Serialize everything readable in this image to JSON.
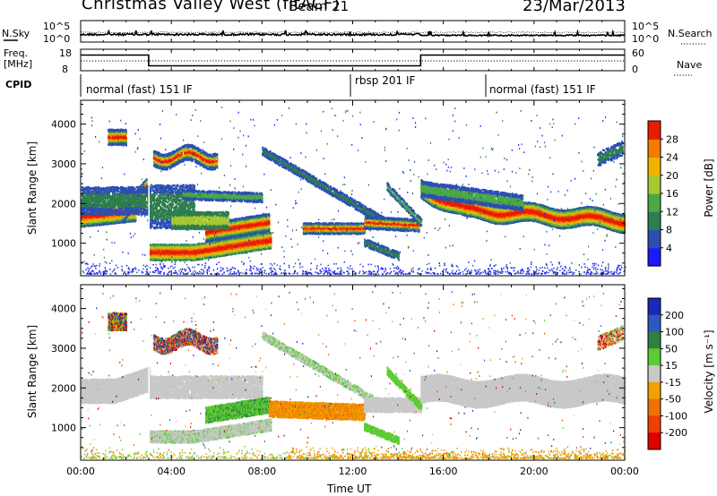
{
  "header": {
    "title": "Christmas Valley West (fitACF)",
    "beam": "Beam 21",
    "date": "23/Mar/2013"
  },
  "top_panels": {
    "nsky": {
      "label": "N.Sky",
      "ticks": [
        "10^5",
        "10^0"
      ]
    },
    "nsearch": {
      "label": "N.Search",
      "ticks": [
        "10^5",
        "10^0"
      ]
    },
    "freq": {
      "label_line1": "Freq.",
      "label_line2": "[MHz]",
      "ticks": [
        "18",
        "8"
      ]
    },
    "nave": {
      "label": "Nave",
      "ticks": [
        "60",
        "0"
      ]
    },
    "cpid": {
      "label": "CPID",
      "segments": [
        "normal (fast) 151 IF",
        "rbsp 201 IF",
        "normal (fast) 151 IF"
      ]
    }
  },
  "chart_data": [
    {
      "type": "heatmap",
      "title": "",
      "xlabel": "",
      "ylabel": "Slant Range [km]",
      "x_ticks": [
        "00:00",
        "04:00",
        "08:00",
        "12:00",
        "16:00",
        "20:00",
        "00:00"
      ],
      "y_ticks": [
        1000,
        2000,
        3000,
        4000
      ],
      "ylim": [
        180,
        4600
      ],
      "colorbar": {
        "label": "Power [dB]",
        "ticks": [
          4,
          8,
          12,
          16,
          20,
          24,
          28
        ],
        "colors": [
          "#1a1aff",
          "#2c4fb3",
          "#2e7d4f",
          "#4aa846",
          "#a8c832",
          "#f0b400",
          "#f47a00",
          "#e61e00"
        ]
      }
    },
    {
      "type": "heatmap",
      "title": "",
      "xlabel": "Time UT",
      "ylabel": "Slant Range [km]",
      "x_ticks": [
        "00:00",
        "04:00",
        "08:00",
        "12:00",
        "16:00",
        "20:00",
        "00:00"
      ],
      "y_ticks": [
        1000,
        2000,
        3000,
        4000
      ],
      "ylim": [
        180,
        4600
      ],
      "colorbar": {
        "label": "Velocity [m s⁻¹]",
        "ticks": [
          "200",
          "100",
          "50",
          "15",
          "-15",
          "-50",
          "-100",
          "-200"
        ],
        "colors": [
          "#1a2ab8",
          "#2e58c0",
          "#2e8040",
          "#5ccc32",
          "#c8c8c8",
          "#f0a000",
          "#f07000",
          "#f04000",
          "#e00000"
        ]
      }
    }
  ]
}
